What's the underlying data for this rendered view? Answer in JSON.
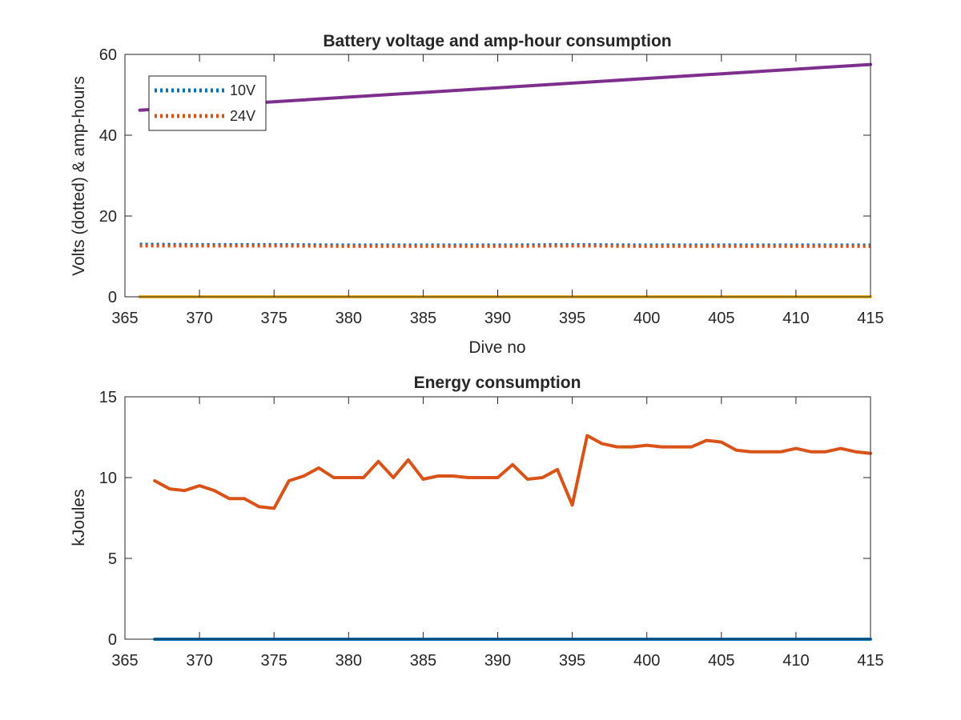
{
  "chart_data": [
    {
      "type": "line",
      "title": "Battery voltage and amp-hour consumption",
      "xlabel": "Dive no",
      "ylabel": "Volts (dotted) & amp-hours",
      "xlim": [
        365,
        415
      ],
      "ylim": [
        0,
        60
      ],
      "xticks": [
        365,
        370,
        375,
        380,
        385,
        390,
        395,
        400,
        405,
        410,
        415
      ],
      "yticks": [
        0,
        20,
        40,
        60
      ],
      "legend_position": "top-left",
      "series": [
        {
          "name": "10V",
          "style": "dotted",
          "color": "#0072BD",
          "in_legend": true,
          "x": [
            366,
            370,
            375,
            380,
            385,
            390,
            395,
            400,
            405,
            410,
            415
          ],
          "values": [
            13.0,
            12.9,
            12.9,
            12.8,
            12.8,
            12.8,
            12.9,
            12.8,
            12.8,
            12.8,
            12.8
          ]
        },
        {
          "name": "24V",
          "style": "dotted",
          "color": "#D95319",
          "in_legend": true,
          "x": [
            366,
            370,
            375,
            380,
            385,
            390,
            395,
            400,
            405,
            410,
            415
          ],
          "values": [
            12.6,
            12.6,
            12.6,
            12.5,
            12.5,
            12.5,
            12.6,
            12.5,
            12.5,
            12.5,
            12.5
          ]
        },
        {
          "style": "solid",
          "color": "#EDB120",
          "in_legend": false,
          "x": [
            366,
            415
          ],
          "values": [
            0,
            0
          ]
        },
        {
          "style": "solid",
          "color": "#7E2F8E",
          "in_legend": false,
          "x": [
            366,
            415
          ],
          "values": [
            46.2,
            57.5
          ]
        }
      ]
    },
    {
      "type": "line",
      "title": "Energy consumption",
      "xlabel": "",
      "ylabel": "kJoules",
      "xlim": [
        365,
        415
      ],
      "ylim": [
        0,
        15
      ],
      "xticks": [
        365,
        370,
        375,
        380,
        385,
        390,
        395,
        400,
        405,
        410,
        415
      ],
      "yticks": [
        0,
        5,
        10,
        15
      ],
      "series": [
        {
          "style": "solid",
          "color": "#0072BD",
          "x": [
            367,
            415
          ],
          "values": [
            0,
            0
          ]
        },
        {
          "style": "solid",
          "color": "#D95319",
          "x": [
            367,
            368,
            369,
            370,
            371,
            372,
            373,
            374,
            375,
            376,
            377,
            378,
            379,
            380,
            381,
            382,
            383,
            384,
            385,
            386,
            387,
            388,
            389,
            390,
            391,
            392,
            393,
            394,
            395,
            396,
            397,
            398,
            399,
            400,
            401,
            402,
            403,
            404,
            405,
            406,
            407,
            408,
            409,
            410,
            411,
            412,
            413,
            414,
            415
          ],
          "values": [
            9.8,
            9.3,
            9.2,
            9.5,
            9.2,
            8.7,
            8.7,
            8.2,
            8.1,
            9.8,
            10.1,
            10.6,
            10.0,
            10.0,
            10.0,
            11.0,
            10.0,
            11.1,
            9.9,
            10.1,
            10.1,
            10.0,
            10.0,
            10.0,
            10.8,
            9.9,
            10.0,
            10.5,
            8.3,
            12.6,
            12.1,
            11.9,
            11.9,
            12.0,
            11.9,
            11.9,
            11.9,
            12.3,
            12.2,
            11.7,
            11.6,
            11.6,
            11.6,
            11.8,
            11.6,
            11.6,
            11.8,
            11.6,
            11.5
          ]
        }
      ]
    }
  ]
}
